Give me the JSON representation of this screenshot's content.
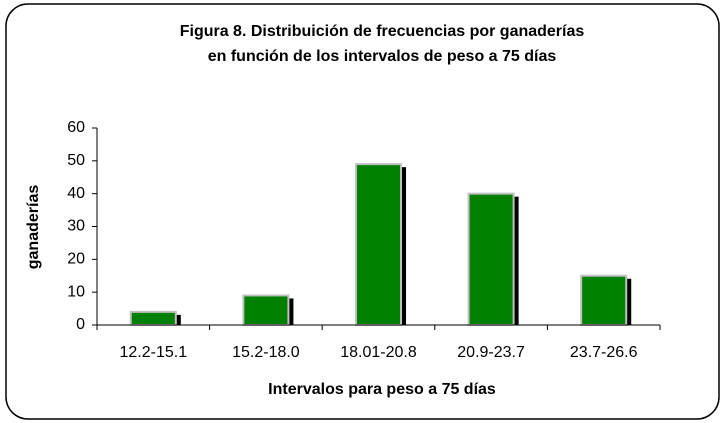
{
  "chart_data": {
    "type": "bar",
    "title": [
      "Figura  8. Distribuición de frecuencias por ganaderías",
      "en función de los intervalos de peso a 75 días"
    ],
    "x_label": "Intervalos para peso a 75 días",
    "y_label": "ganaderías",
    "categories": [
      "12.2-15.1",
      "15.2-18.0",
      "18.01-20.8",
      "20.9-23.7",
      "23.7-26.6"
    ],
    "values": [
      4,
      9,
      49,
      40,
      15
    ],
    "color": "#008000",
    "ylim": [
      0,
      60
    ],
    "yticks": [
      0,
      10,
      20,
      30,
      40,
      50,
      60
    ],
    "grid": false
  }
}
